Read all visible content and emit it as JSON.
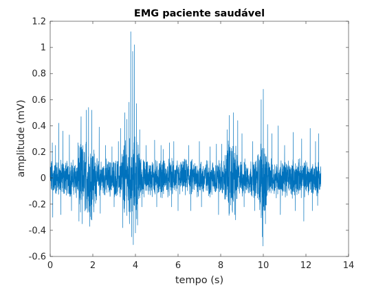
{
  "chart_data": {
    "type": "line",
    "title": "EMG paciente saudável",
    "xlabel": "tempo (s)",
    "ylabel": "amplitude (mV)",
    "xlim": [
      0,
      14
    ],
    "ylim": [
      -0.6,
      1.2
    ],
    "xticks": [
      0,
      2,
      4,
      6,
      8,
      10,
      12,
      14
    ],
    "xtick_labels": [
      "0",
      "2",
      "4",
      "6",
      "8",
      "10",
      "12",
      "14"
    ],
    "yticks": [
      -0.6,
      -0.4,
      -0.2,
      0,
      0.2,
      0.4,
      0.6,
      0.8,
      1,
      1.2
    ],
    "ytick_labels": [
      "-0.6",
      "-0.4",
      "-0.2",
      "0",
      "0.2",
      "0.4",
      "0.6",
      "0.8",
      "1",
      "1.2"
    ],
    "grid": false,
    "box": true,
    "series": [
      {
        "color": "#0072BD",
        "x_range": [
          0,
          12.7
        ],
        "baseline_noise_amplitude": 0.1,
        "peaks": [
          {
            "x": 0.1,
            "y": 0.27
          },
          {
            "x": 0.12,
            "y": -0.3
          },
          {
            "x": 0.25,
            "y": 0.25
          },
          {
            "x": 0.4,
            "y": 0.42
          },
          {
            "x": 0.5,
            "y": -0.28
          },
          {
            "x": 0.6,
            "y": 0.36
          },
          {
            "x": 0.9,
            "y": 0.33
          },
          {
            "x": 1.0,
            "y": -0.25
          },
          {
            "x": 1.3,
            "y": 0.27
          },
          {
            "x": 1.35,
            "y": -0.33
          },
          {
            "x": 1.45,
            "y": 0.47
          },
          {
            "x": 1.5,
            "y": -0.35
          },
          {
            "x": 1.7,
            "y": 0.52
          },
          {
            "x": 1.8,
            "y": 0.54
          },
          {
            "x": 1.85,
            "y": -0.37
          },
          {
            "x": 1.95,
            "y": 0.52
          },
          {
            "x": 2.05,
            "y": -0.26
          },
          {
            "x": 2.3,
            "y": 0.39
          },
          {
            "x": 2.35,
            "y": -0.27
          },
          {
            "x": 2.6,
            "y": 0.25
          },
          {
            "x": 2.9,
            "y": 0.24
          },
          {
            "x": 3.0,
            "y": -0.22
          },
          {
            "x": 3.2,
            "y": 0.28
          },
          {
            "x": 3.3,
            "y": 0.38
          },
          {
            "x": 3.4,
            "y": -0.38
          },
          {
            "x": 3.5,
            "y": 0.5
          },
          {
            "x": 3.6,
            "y": 0.45
          },
          {
            "x": 3.7,
            "y": 0.58
          },
          {
            "x": 3.72,
            "y": -0.35
          },
          {
            "x": 3.78,
            "y": 1.12
          },
          {
            "x": 3.82,
            "y": -0.45
          },
          {
            "x": 3.87,
            "y": 0.97
          },
          {
            "x": 3.9,
            "y": -0.51
          },
          {
            "x": 3.95,
            "y": 1.02
          },
          {
            "x": 4.0,
            "y": -0.42
          },
          {
            "x": 4.05,
            "y": 0.57
          },
          {
            "x": 4.1,
            "y": -0.36
          },
          {
            "x": 4.2,
            "y": 0.37
          },
          {
            "x": 4.3,
            "y": -0.22
          },
          {
            "x": 4.5,
            "y": 0.25
          },
          {
            "x": 4.9,
            "y": 0.29
          },
          {
            "x": 5.0,
            "y": -0.22
          },
          {
            "x": 5.2,
            "y": 0.25
          },
          {
            "x": 5.3,
            "y": 0.22
          },
          {
            "x": 5.6,
            "y": 0.27
          },
          {
            "x": 5.7,
            "y": -0.22
          },
          {
            "x": 5.8,
            "y": 0.28
          },
          {
            "x": 6.0,
            "y": -0.25
          },
          {
            "x": 6.5,
            "y": 0.25
          },
          {
            "x": 6.6,
            "y": -0.25
          },
          {
            "x": 7.0,
            "y": 0.28
          },
          {
            "x": 7.1,
            "y": -0.22
          },
          {
            "x": 7.5,
            "y": 0.24
          },
          {
            "x": 7.8,
            "y": 0.26
          },
          {
            "x": 7.9,
            "y": -0.28
          },
          {
            "x": 8.05,
            "y": 0.26
          },
          {
            "x": 8.3,
            "y": 0.37
          },
          {
            "x": 8.4,
            "y": 0.48
          },
          {
            "x": 8.6,
            "y": 0.5
          },
          {
            "x": 8.7,
            "y": -0.32
          },
          {
            "x": 8.8,
            "y": 0.44
          },
          {
            "x": 9.0,
            "y": 0.34
          },
          {
            "x": 9.1,
            "y": -0.22
          },
          {
            "x": 9.5,
            "y": 0.28
          },
          {
            "x": 9.6,
            "y": -0.25
          },
          {
            "x": 9.9,
            "y": 0.6
          },
          {
            "x": 9.95,
            "y": -0.45
          },
          {
            "x": 9.98,
            "y": -0.52
          },
          {
            "x": 10.0,
            "y": 0.68
          },
          {
            "x": 10.1,
            "y": -0.35
          },
          {
            "x": 10.2,
            "y": 0.41
          },
          {
            "x": 10.4,
            "y": 0.34
          },
          {
            "x": 10.7,
            "y": 0.4
          },
          {
            "x": 10.8,
            "y": -0.28
          },
          {
            "x": 11.0,
            "y": 0.25
          },
          {
            "x": 11.4,
            "y": 0.35
          },
          {
            "x": 11.5,
            "y": -0.25
          },
          {
            "x": 11.8,
            "y": 0.3
          },
          {
            "x": 11.9,
            "y": -0.33
          },
          {
            "x": 12.2,
            "y": 0.38
          },
          {
            "x": 12.3,
            "y": -0.25
          },
          {
            "x": 12.45,
            "y": 0.28
          },
          {
            "x": 12.55,
            "y": -0.21
          },
          {
            "x": 12.6,
            "y": 0.34
          },
          {
            "x": 12.7,
            "y": 0.01
          }
        ]
      }
    ]
  }
}
